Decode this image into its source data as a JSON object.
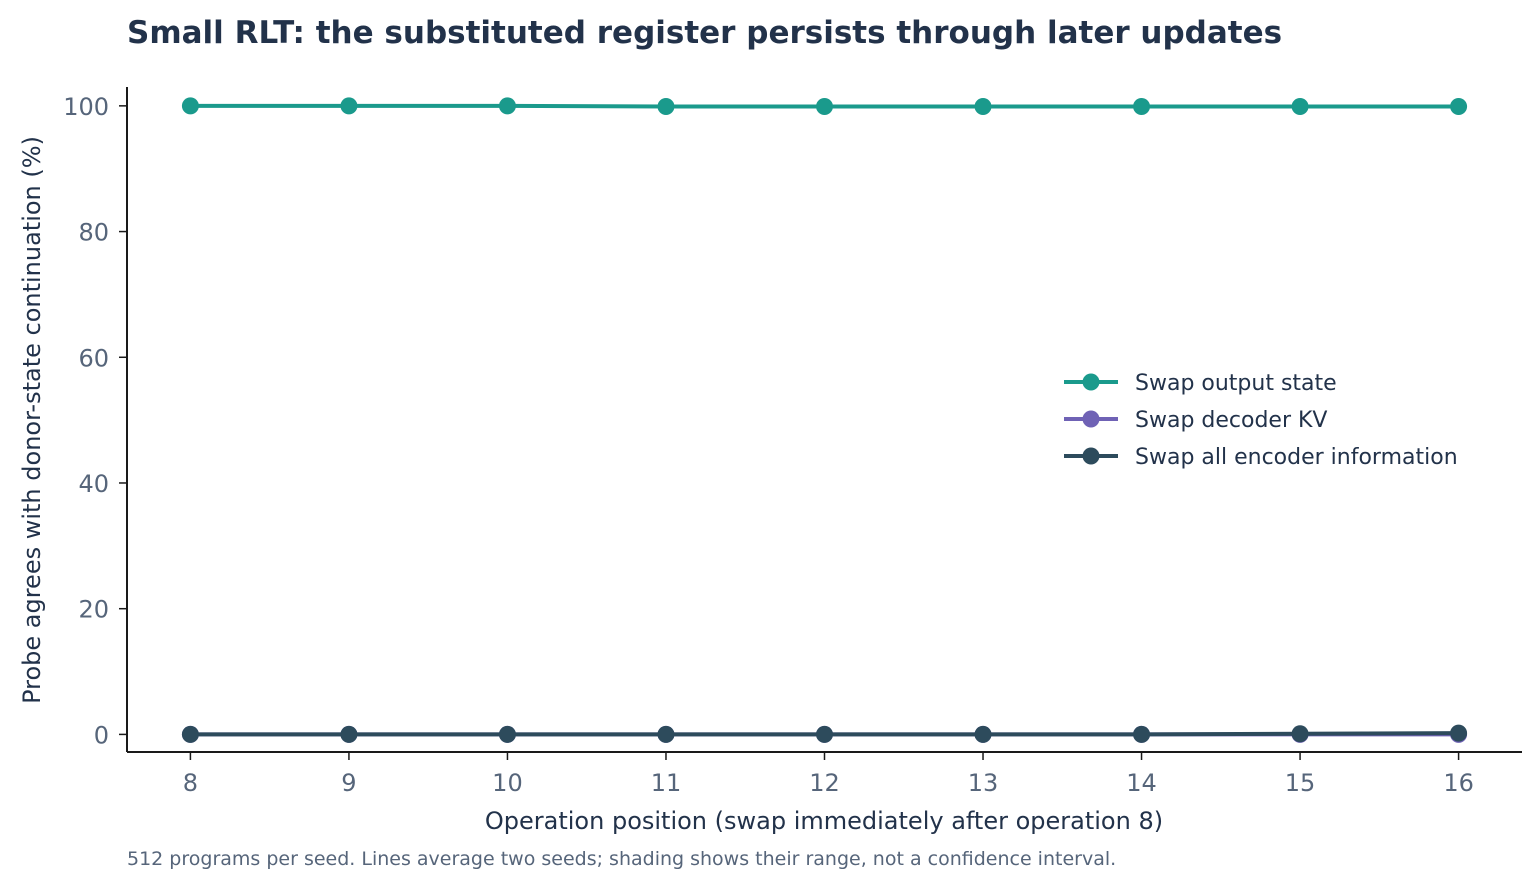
{
  "chart_data": {
    "type": "line",
    "title": "Small RLT: the substituted register persists through later updates",
    "xlabel": "Operation position (swap immediately after operation 8)",
    "ylabel": "Probe agrees with donor-state continuation (%)",
    "footnote": "512 programs per seed. Lines average two seeds; shading shows their range, not a confidence interval.",
    "x": [
      8,
      9,
      10,
      11,
      12,
      13,
      14,
      15,
      16
    ],
    "x_ticks": [
      "8",
      "9",
      "10",
      "11",
      "12",
      "13",
      "14",
      "15",
      "16"
    ],
    "y_ticks": [
      "0",
      "20",
      "40",
      "60",
      "80",
      "100"
    ],
    "xlim": [
      7.6,
      16.4
    ],
    "ylim": [
      -2.8,
      103
    ],
    "grid": false,
    "legend_position": "center-right",
    "series": [
      {
        "name": "Swap output state",
        "color": "#1a9a8c",
        "values": [
          100,
          100,
          100,
          99.9,
          99.9,
          99.9,
          99.9,
          99.9,
          99.9
        ]
      },
      {
        "name": "Swap decoder KV",
        "color": "#6f62b5",
        "values": [
          0,
          0,
          0,
          0,
          0,
          0,
          0,
          0,
          0
        ]
      },
      {
        "name": "Swap all encoder information",
        "color": "#2d4b5c",
        "values": [
          0,
          0,
          0,
          0,
          0,
          0,
          0,
          0.1,
          0.2
        ]
      }
    ]
  }
}
